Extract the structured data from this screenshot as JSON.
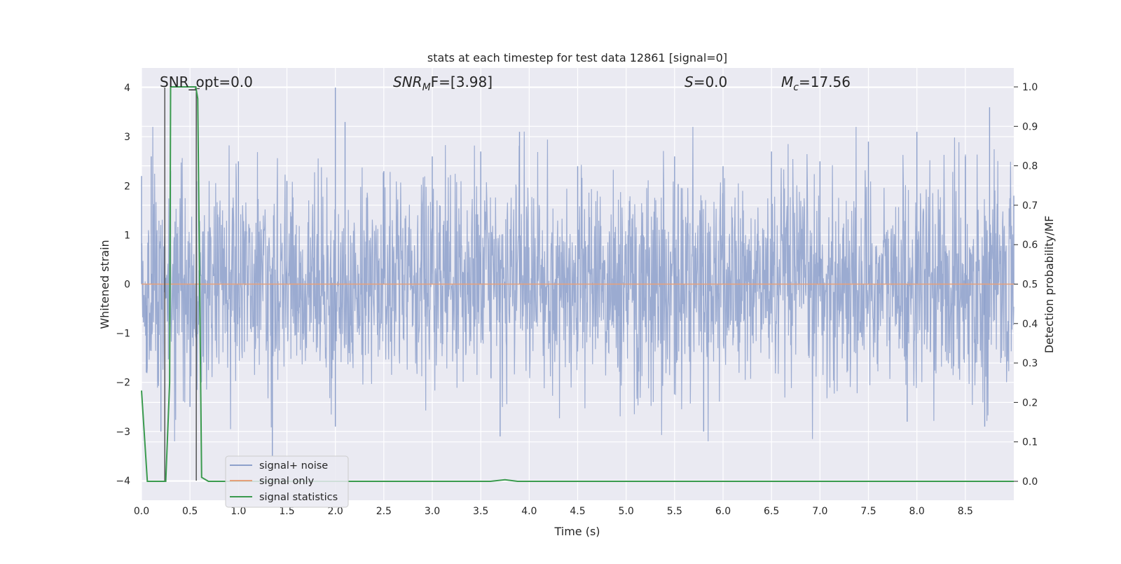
{
  "chart_data": {
    "type": "line",
    "title": "stats at each timestep for test data 12861 [signal=0]",
    "xlabel": "Time (s)",
    "ylabel": "Whitened strain",
    "y2label": "Detection probability/MF",
    "xlim": [
      0.0,
      9.0
    ],
    "ylim": [
      -4.4,
      4.4
    ],
    "y2lim": [
      -0.048,
      1.048
    ],
    "grid": true,
    "legend_position": "lower-left",
    "xticks": [
      "0.0",
      "0.5",
      "1.0",
      "1.5",
      "2.0",
      "2.5",
      "3.0",
      "3.5",
      "4.0",
      "4.5",
      "5.0",
      "5.5",
      "6.0",
      "6.5",
      "7.0",
      "7.5",
      "8.0",
      "8.5"
    ],
    "yticks": [
      "4",
      "3",
      "2",
      "1",
      "0",
      "−1",
      "−2",
      "−3",
      "−4"
    ],
    "y2ticks": [
      "1.0",
      "0.9",
      "0.8",
      "0.7",
      "0.6",
      "0.5",
      "0.4",
      "0.3",
      "0.2",
      "0.1",
      "0.0"
    ],
    "annotations": {
      "snr_opt": "SNR_opt=0.0",
      "snr_mf_base": "SNR",
      "snr_mf_sub": "M",
      "snr_mf_rest": "F=[3.98]",
      "s_base": "S",
      "s_rest": "=0.0",
      "mc_base": "M",
      "mc_sub": "c",
      "mc_rest": "=17.56"
    },
    "series": [
      {
        "name": "signal+ noise",
        "axis": "left",
        "color": "#8da0cb",
        "description_samples": [
          [
            0.0,
            2.2
          ],
          [
            0.05,
            -1.8
          ],
          [
            0.1,
            2.6
          ],
          [
            0.2,
            -3.0
          ],
          [
            0.3,
            2.3
          ],
          [
            0.5,
            -2.5
          ],
          [
            1.0,
            2.5
          ],
          [
            1.35,
            -3.5
          ],
          [
            1.5,
            2.1
          ],
          [
            2.0,
            4.0
          ],
          [
            2.1,
            3.3
          ],
          [
            2.0,
            -2.9
          ],
          [
            2.5,
            2.3
          ],
          [
            3.0,
            2.6
          ],
          [
            3.5,
            2.7
          ],
          [
            3.7,
            -3.1
          ],
          [
            3.9,
            3.1
          ],
          [
            4.5,
            2.4
          ],
          [
            5.5,
            2.6
          ],
          [
            5.8,
            -3.0
          ],
          [
            6.0,
            2.4
          ],
          [
            6.5,
            2.7
          ],
          [
            7.0,
            2.5
          ],
          [
            7.5,
            2.9
          ],
          [
            7.9,
            -2.8
          ],
          [
            8.0,
            3.1
          ],
          [
            8.5,
            2.6
          ],
          [
            8.75,
            3.6
          ],
          [
            8.7,
            -2.9
          ],
          [
            9.0,
            1.8
          ]
        ]
      },
      {
        "name": "signal only",
        "axis": "left",
        "color": "#e5a07a",
        "x": [
          0.0,
          9.0
        ],
        "y": [
          0.0,
          0.0
        ]
      },
      {
        "name": "signal statistics",
        "axis": "right",
        "color": "#3a9a4e",
        "x": [
          0.0,
          0.06,
          0.25,
          0.29,
          0.3,
          0.56,
          0.58,
          0.62,
          0.69,
          3.6,
          3.75,
          3.88,
          9.0
        ],
        "y": [
          0.23,
          0.0,
          0.0,
          0.25,
          1.0,
          1.0,
          0.97,
          0.01,
          0.0,
          0.0,
          0.004,
          0.0,
          0.0
        ]
      }
    ],
    "mf_markers": {
      "color": "#4a4a4a",
      "x": [
        0.24,
        0.565
      ],
      "y_top": [
        4.0,
        3.98
      ]
    }
  }
}
